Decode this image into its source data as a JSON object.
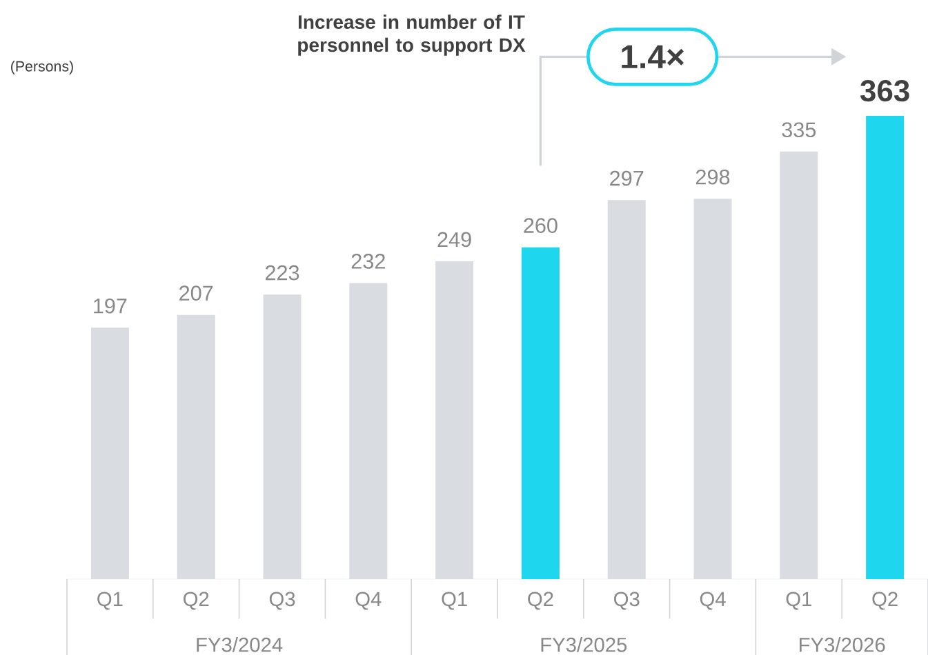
{
  "chart_data": {
    "type": "bar",
    "title": "Increase in number of IT personnel to support DX",
    "ylabel": "(Persons)",
    "categories": [
      "Q1",
      "Q2",
      "Q3",
      "Q4",
      "Q1",
      "Q2",
      "Q3",
      "Q4",
      "Q1",
      "Q2"
    ],
    "values": [
      197,
      207,
      223,
      232,
      249,
      260,
      297,
      298,
      335,
      363
    ],
    "colors": [
      "#d9dce1",
      "#d9dce1",
      "#d9dce1",
      "#d9dce1",
      "#d9dce1",
      "#1ed6ee",
      "#d9dce1",
      "#d9dce1",
      "#d9dce1",
      "#1ed6ee"
    ],
    "data_labels": true,
    "annotations": [
      "FY3/2024",
      "FY3/2025",
      "FY3/2026",
      "1.4×"
    ]
  }
}
